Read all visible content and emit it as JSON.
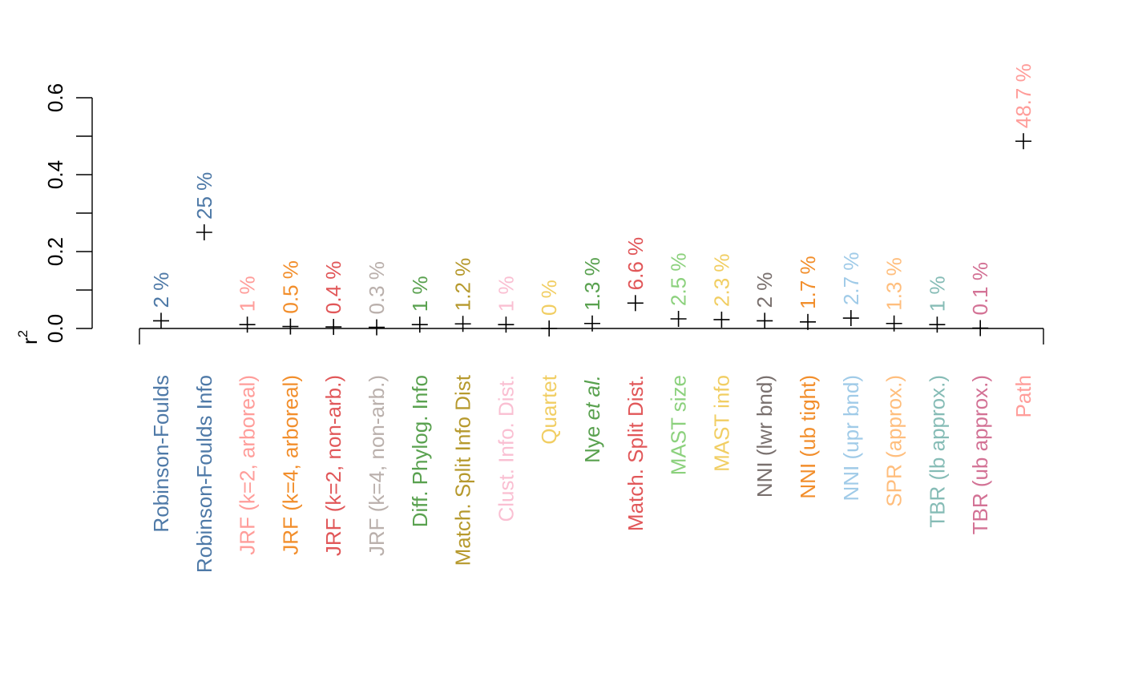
{
  "chart_data": {
    "type": "scatter",
    "ylabel": "r",
    "ylabel_superscript": "2",
    "ylim": [
      0,
      0.6
    ],
    "y_ticks": [
      0.0,
      0.2,
      0.4,
      0.6
    ],
    "y_tick_labels": [
      "0.0",
      "0.2",
      "0.4",
      "0.6"
    ],
    "points": [
      {
        "category": "Robinson-Foulds",
        "value": 0.02,
        "label": "2 %",
        "color": "#4e79a7"
      },
      {
        "category": "Robinson-Foulds Info",
        "value": 0.25,
        "label": "25 %",
        "color": "#4e79a7"
      },
      {
        "category": "JRF (k=2, arboreal)",
        "value": 0.01,
        "label": "1 %",
        "color": "#ff9d9a"
      },
      {
        "category": "JRF (k=4, arboreal)",
        "value": 0.005,
        "label": "0.5 %",
        "color": "#f28e2b"
      },
      {
        "category": "JRF (k=2, non-arb.)",
        "value": 0.004,
        "label": "0.4 %",
        "color": "#e15759"
      },
      {
        "category": "JRF (k=4, non-arb.)",
        "value": 0.003,
        "label": "0.3 %",
        "color": "#bab0ac"
      },
      {
        "category": "Diff. Phylog. Info",
        "value": 0.01,
        "label": "1 %",
        "color": "#59a14f"
      },
      {
        "category": "Match. Split Info Dist",
        "value": 0.012,
        "label": "1.2 %",
        "color": "#b6992d"
      },
      {
        "category": "Clust. Info. Dist.",
        "value": 0.01,
        "label": "1 %",
        "color": "#fabfd2"
      },
      {
        "category": "Quartet",
        "value": 0.0,
        "label": "0 %",
        "color": "#f1ce63"
      },
      {
        "category": "Nye et al.",
        "category_plain": "Nye ",
        "category_italic": "et al.",
        "value": 0.013,
        "label": "1.3 %",
        "color": "#59a14f"
      },
      {
        "category": "Match. Split Dist.",
        "value": 0.066,
        "label": "6.6 %",
        "color": "#e15759"
      },
      {
        "category": "MAST size",
        "value": 0.025,
        "label": "2.5 %",
        "color": "#8cd17d"
      },
      {
        "category": "MAST info",
        "value": 0.023,
        "label": "2.3 %",
        "color": "#f1ce63"
      },
      {
        "category": "NNI (lwr bnd)",
        "value": 0.02,
        "label": "2 %",
        "color": "#79706e"
      },
      {
        "category": "NNI (ub tight)",
        "value": 0.017,
        "label": "1.7 %",
        "color": "#f28e2b"
      },
      {
        "category": "NNI (upr bnd)",
        "value": 0.027,
        "label": "2.7 %",
        "color": "#a0cbe8"
      },
      {
        "category": "SPR (approx.)",
        "value": 0.013,
        "label": "1.3 %",
        "color": "#ffbe7d"
      },
      {
        "category": "TBR (lb approx.)",
        "value": 0.01,
        "label": "1 %",
        "color": "#86bcb6"
      },
      {
        "category": "TBR (ub approx.)",
        "value": 0.001,
        "label": "0.1 %",
        "color": "#d37295"
      },
      {
        "category": "Path",
        "value": 0.487,
        "label": "48.7 %",
        "color": "#ff9d9a"
      }
    ]
  }
}
